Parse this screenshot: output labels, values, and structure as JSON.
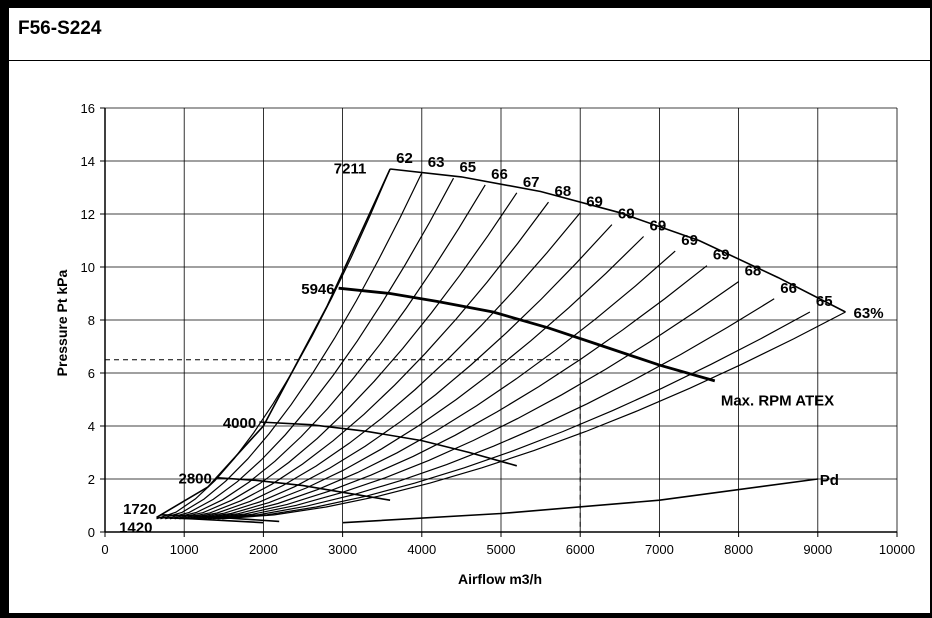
{
  "chart_data": {
    "type": "line",
    "title": "F56-S224",
    "xlabel": "Airflow m3/h",
    "ylabel": "Pressure Pt kPa",
    "xlim": [
      0,
      10000
    ],
    "ylim": [
      0,
      16
    ],
    "xticks": [
      "0",
      "1000",
      "2000",
      "3000",
      "4000",
      "5000",
      "6000",
      "7000",
      "8000",
      "9000",
      "10000"
    ],
    "yticks": [
      "0",
      "2",
      "4",
      "6",
      "8",
      "10",
      "12",
      "14",
      "16"
    ],
    "grid": true,
    "speed_curves": [
      {
        "label": "7211",
        "points": [
          [
            650,
            0.55
          ],
          [
            1300,
            1.7
          ],
          [
            2000,
            4.0
          ],
          [
            2800,
            8.5
          ],
          [
            3600,
            13.7
          ]
        ]
      },
      {
        "label": "5946",
        "points": [
          [
            2950,
            9.2
          ],
          [
            3600,
            9.0
          ],
          [
            4200,
            8.7
          ],
          [
            4900,
            8.3
          ],
          [
            5600,
            7.7
          ],
          [
            6300,
            7.0
          ],
          [
            7000,
            6.3
          ],
          [
            7700,
            5.7
          ]
        ]
      },
      {
        "label": "4000",
        "points": [
          [
            1950,
            4.15
          ],
          [
            2600,
            4.05
          ],
          [
            3300,
            3.8
          ],
          [
            4000,
            3.45
          ],
          [
            4600,
            3.0
          ],
          [
            5200,
            2.5
          ]
        ]
      },
      {
        "label": "2800",
        "points": [
          [
            1400,
            2.05
          ],
          [
            1900,
            1.95
          ],
          [
            2500,
            1.75
          ],
          [
            3000,
            1.5
          ],
          [
            3600,
            1.2
          ]
        ]
      },
      {
        "label": "1720",
        "points": [
          [
            700,
            0.65
          ],
          [
            1200,
            0.6
          ],
          [
            1700,
            0.5
          ],
          [
            2200,
            0.4
          ]
        ]
      },
      {
        "label": "1420",
        "points": [
          [
            650,
            0.55
          ],
          [
            1100,
            0.5
          ],
          [
            1600,
            0.42
          ],
          [
            2000,
            0.35
          ]
        ]
      }
    ],
    "efficiency_lines": {
      "labels": [
        "62",
        "63",
        "65",
        "66",
        "67",
        "68",
        "69",
        "69",
        "69",
        "69",
        "69",
        "68",
        "66",
        "65",
        "63%"
      ],
      "top_x": [
        3600,
        4000,
        4400,
        4800,
        5200,
        5600,
        6000,
        6400,
        6800,
        7200,
        7600,
        8000,
        8450,
        8900,
        9350
      ],
      "top_y": [
        13.7,
        13.55,
        13.35,
        13.1,
        12.8,
        12.45,
        12.05,
        11.6,
        11.15,
        10.6,
        10.05,
        9.45,
        8.8,
        8.3,
        8.3
      ],
      "base_x": [
        650,
        700,
        760,
        820,
        880,
        940,
        1000,
        1060,
        1120,
        1180,
        1240,
        1300,
        1360,
        1420,
        1480
      ]
    },
    "envelope": {
      "points": [
        [
          3600,
          13.7
        ],
        [
          4500,
          13.4
        ],
        [
          5500,
          12.85
        ],
        [
          6500,
          12.05
        ],
        [
          7500,
          11.0
        ],
        [
          8500,
          9.6
        ],
        [
          9350,
          8.3
        ]
      ]
    },
    "pd_curve": {
      "label": "Pd",
      "points": [
        [
          3000,
          0.35
        ],
        [
          5000,
          0.7
        ],
        [
          7000,
          1.2
        ],
        [
          9000,
          2.0
        ]
      ]
    },
    "operating_point": {
      "x": 6000,
      "y": 6.5
    },
    "annotations": [
      {
        "text": "Max. RPM ATEX",
        "x": 7700,
        "y": 5.0
      }
    ]
  }
}
